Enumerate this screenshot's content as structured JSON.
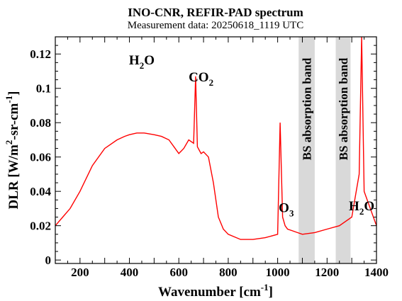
{
  "chart_data": {
    "type": "line",
    "title": "INO-CNR, REFIR-PAD spectrum",
    "subtitle": "Measurement data: 20250618_1119 UTC",
    "xlabel": "Wavenumber [cm-1]",
    "ylabel": "DLR [W/m2-sr-cm-1]",
    "xlim": [
      100,
      1400
    ],
    "ylim": [
      -0.002,
      0.13
    ],
    "x_ticks": [
      200,
      400,
      600,
      800,
      1000,
      1200,
      1400
    ],
    "x_tick_labels": [
      "200",
      "400",
      "600",
      "800",
      "1000",
      "1200",
      "1400"
    ],
    "y_ticks": [
      0,
      0.02,
      0.04,
      0.06,
      0.08,
      0.1,
      0.12
    ],
    "y_tick_labels": [
      "0",
      "0.02",
      "0.04",
      "0.06",
      "0.08",
      "0.1",
      "0.12"
    ],
    "grid": false,
    "series_color": "#ff0000",
    "band_color": "#d9d9d9",
    "series": [
      {
        "x": [
          100,
          130,
          160,
          200,
          250,
          300,
          350,
          380,
          400,
          430,
          460,
          500,
          530,
          560,
          580,
          600,
          620,
          640,
          660,
          668,
          675,
          690,
          700,
          720,
          740,
          760,
          780,
          800,
          850,
          900,
          950,
          1000,
          1010,
          1020,
          1030,
          1040,
          1060,
          1080,
          1100,
          1150,
          1200,
          1250,
          1300,
          1330,
          1340,
          1350,
          1400
        ],
        "y": [
          0.02,
          0.025,
          0.03,
          0.04,
          0.055,
          0.065,
          0.07,
          0.072,
          0.073,
          0.074,
          0.074,
          0.073,
          0.072,
          0.07,
          0.066,
          0.062,
          0.065,
          0.07,
          0.068,
          0.107,
          0.066,
          0.062,
          0.063,
          0.06,
          0.045,
          0.025,
          0.018,
          0.015,
          0.012,
          0.012,
          0.013,
          0.015,
          0.08,
          0.025,
          0.02,
          0.018,
          0.017,
          0.016,
          0.015,
          0.016,
          0.018,
          0.02,
          0.025,
          0.05,
          0.13,
          0.04,
          0.02
        ]
      }
    ],
    "bands": [
      {
        "x0": 1085,
        "x1": 1150,
        "label": "BS absorption band"
      },
      {
        "x0": 1235,
        "x1": 1295,
        "label": "BS absorption band"
      }
    ],
    "annotations": [
      {
        "text": "H2O",
        "base": "H",
        "sub": "2",
        "tail": "O",
        "x": 450,
        "y": 0.114
      },
      {
        "text": "CO2",
        "base": "CO",
        "sub": "2",
        "tail": "",
        "x": 690,
        "y": 0.104
      },
      {
        "text": "O3",
        "base": "O",
        "sub": "3",
        "tail": "",
        "x": 1035,
        "y": 0.028
      },
      {
        "text": "H2O",
        "base": "H",
        "sub": "2",
        "tail": "O",
        "x": 1340,
        "y": 0.029
      }
    ]
  }
}
